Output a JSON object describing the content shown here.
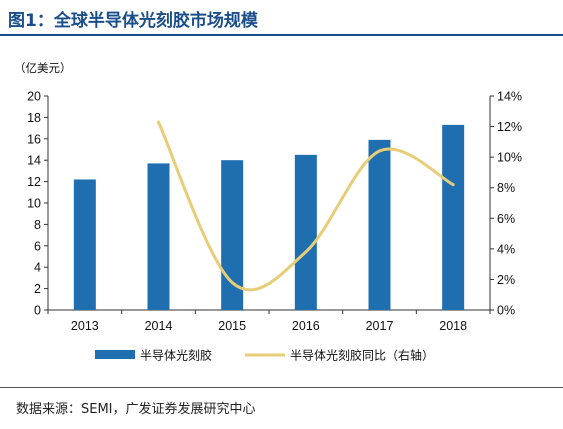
{
  "header": {
    "title": "图1：全球半导体光刻胶市场规模"
  },
  "footer": {
    "source": "数据来源：SEMI，广发证券发展研究中心"
  },
  "chart_data": {
    "type": "bar",
    "categories": [
      "2013",
      "2014",
      "2015",
      "2016",
      "2017",
      "2018"
    ],
    "y_unit_label": "（亿美元）",
    "ylim": [
      0,
      20
    ],
    "y_ticks": [
      0,
      2,
      4,
      6,
      8,
      10,
      12,
      14,
      16,
      18,
      20
    ],
    "y2lim": [
      0,
      0.14
    ],
    "y2_ticks": [
      "0%",
      "2%",
      "4%",
      "6%",
      "8%",
      "10%",
      "12%",
      "14%"
    ],
    "grid": false,
    "legend_position": "bottom",
    "series": [
      {
        "name": "半导体光刻胶",
        "type": "bar",
        "axis": "left",
        "color": "#1f6fb0",
        "values": [
          12.2,
          13.7,
          14.0,
          14.5,
          15.9,
          17.3
        ]
      },
      {
        "name": "半导体光刻胶同比（右轴）",
        "type": "line",
        "axis": "right",
        "color": "#e8cd77",
        "values": [
          null,
          0.123,
          0.018,
          0.038,
          0.104,
          0.082
        ]
      }
    ]
  }
}
